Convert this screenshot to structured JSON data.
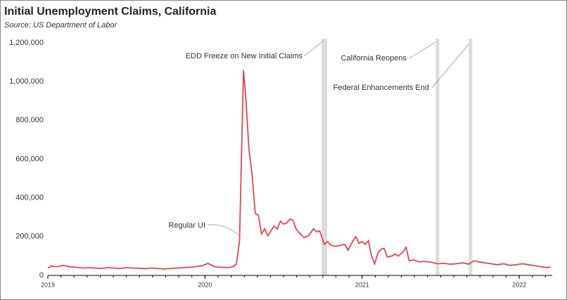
{
  "chart_data": {
    "type": "line",
    "title": "Initial Unemployment Claims, California",
    "subtitle": "Source:  US Department of Labor",
    "xlim": [
      2019,
      2022.21
    ],
    "xticks": [
      2019,
      2020,
      2021,
      2022
    ],
    "ylim": [
      0,
      1200000
    ],
    "yticks": [
      0,
      {
        "value": 200000,
        "label": "200,000"
      },
      {
        "value": 400000,
        "label": "400,000"
      },
      {
        "value": 600000,
        "label": "600,000"
      },
      {
        "value": 800000,
        "label": "800,000"
      },
      {
        "value": 1000000,
        "label": "1,000,000"
      },
      {
        "value": 1200000,
        "label": "1,200,000"
      }
    ],
    "x": [
      2019.0,
      2019.02,
      2019.06,
      2019.1,
      2019.14,
      2019.18,
      2019.22,
      2019.26,
      2019.3,
      2019.34,
      2019.38,
      2019.42,
      2019.46,
      2019.5,
      2019.54,
      2019.58,
      2019.62,
      2019.66,
      2019.7,
      2019.74,
      2019.78,
      2019.82,
      2019.86,
      2019.9,
      2019.94,
      2019.98,
      2020.02,
      2020.06,
      2020.1,
      2020.14,
      2020.18,
      2020.2,
      2020.22,
      2020.245,
      2020.26,
      2020.28,
      2020.3,
      2020.32,
      2020.34,
      2020.36,
      2020.38,
      2020.4,
      2020.42,
      2020.44,
      2020.46,
      2020.48,
      2020.5,
      2020.52,
      2020.54,
      2020.56,
      2020.58,
      2020.6,
      2020.63,
      2020.66,
      2020.69,
      2020.71,
      2020.73,
      2020.76,
      2020.78,
      2020.8,
      2020.83,
      2020.86,
      2020.89,
      2020.91,
      2020.94,
      2020.96,
      2020.98,
      2021.0,
      2021.02,
      2021.04,
      2021.06,
      2021.08,
      2021.1,
      2021.12,
      2021.14,
      2021.16,
      2021.19,
      2021.21,
      2021.23,
      2021.26,
      2021.28,
      2021.3,
      2021.33,
      2021.36,
      2021.4,
      2021.44,
      2021.48,
      2021.52,
      2021.56,
      2021.6,
      2021.64,
      2021.68,
      2021.71,
      2021.74,
      2021.78,
      2021.82,
      2021.86,
      2021.9,
      2021.94,
      2021.98,
      2022.02,
      2022.06,
      2022.1,
      2022.14,
      2022.18,
      2022.2
    ],
    "series": [
      {
        "name": "Regular UI",
        "color": "#e5454d",
        "values": [
          38000,
          48000,
          45000,
          52000,
          44000,
          42000,
          38000,
          40000,
          38000,
          36000,
          40000,
          38000,
          36000,
          40000,
          38000,
          37000,
          35000,
          38000,
          36000,
          33000,
          36000,
          38000,
          40000,
          42000,
          45000,
          50000,
          62000,
          45000,
          42000,
          40000,
          45000,
          58000,
          180000,
          1060000,
          920000,
          650000,
          520000,
          320000,
          310000,
          215000,
          240000,
          205000,
          230000,
          255000,
          240000,
          280000,
          265000,
          270000,
          290000,
          285000,
          240000,
          220000,
          195000,
          205000,
          240000,
          225000,
          230000,
          160000,
          175000,
          155000,
          150000,
          155000,
          160000,
          130000,
          175000,
          200000,
          165000,
          175000,
          160000,
          180000,
          100000,
          60000,
          115000,
          135000,
          140000,
          95000,
          100000,
          110000,
          100000,
          120000,
          145000,
          75000,
          80000,
          70000,
          72000,
          68000,
          60000,
          62000,
          58000,
          60000,
          65000,
          58000,
          75000,
          70000,
          65000,
          60000,
          55000,
          60000,
          52000,
          55000,
          60000,
          55000,
          50000,
          45000,
          40000,
          45000
        ]
      }
    ],
    "events": [
      {
        "label": "EDD Freeze on New Initial Claims",
        "x": 2020.76
      },
      {
        "label": "California Reopens",
        "x": 2021.48
      },
      {
        "label": "Federal Enhancements End",
        "x": 2021.69
      }
    ]
  }
}
